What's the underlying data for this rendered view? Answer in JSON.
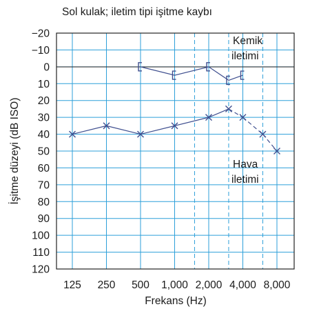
{
  "chart_data": {
    "type": "line",
    "title": "Sol kulak; iletim tipi işitme kaybı",
    "xlabel": "Frekans (Hz)",
    "ylabel": "İşitme düzeyi (dB ISO)",
    "x_scale": "log",
    "y_inverted": true,
    "ylim": [
      -20,
      120
    ],
    "y_ticks": [
      -20,
      -10,
      0,
      10,
      20,
      30,
      40,
      50,
      60,
      70,
      80,
      90,
      100,
      110,
      120
    ],
    "x_ticks": [
      {
        "value": 125,
        "label": "125"
      },
      {
        "value": 250,
        "label": "250"
      },
      {
        "value": 500,
        "label": "500"
      },
      {
        "value": 1000,
        "label": "1,000"
      },
      {
        "value": 2000,
        "label": "2,000"
      },
      {
        "value": 4000,
        "label": "4,000"
      },
      {
        "value": 8000,
        "label": "8,000"
      }
    ],
    "solid_gridlines_x": [
      125,
      250,
      500,
      1000,
      2000,
      4000,
      8000
    ],
    "dashed_gridlines_x": [
      1500,
      3000,
      6000
    ],
    "reference_line_y": 0,
    "grid": true,
    "series": [
      {
        "name": "Kemik iletimi",
        "marker": "bracket",
        "line_style": "solid",
        "x": [
          500,
          1000,
          2000,
          3000,
          4000
        ],
        "y": [
          0,
          5,
          0,
          8,
          5
        ]
      },
      {
        "name": "Hava iletimi",
        "marker": "x",
        "line_style": "solid-then-dashed",
        "x": [
          125,
          250,
          500,
          1000,
          2000,
          3000,
          4000,
          6000,
          8000
        ],
        "y": [
          40,
          35,
          40,
          35,
          30,
          25,
          30,
          40,
          50
        ]
      }
    ],
    "annotations": [
      {
        "lines": [
          "Kemik",
          "iletimi"
        ],
        "series": "Kemik iletimi"
      },
      {
        "lines": [
          "Hava",
          "iletimi"
        ],
        "series": "Hava iletimi"
      }
    ],
    "colors": {
      "grid": "#2c9fd9",
      "series_line": "#3f4f8f",
      "axis": "#222222",
      "text": "#1a1a1a"
    }
  }
}
